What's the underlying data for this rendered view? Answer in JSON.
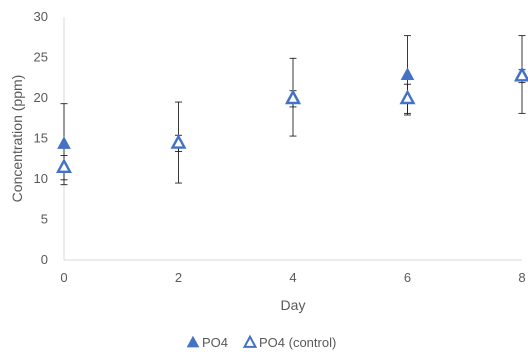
{
  "chart_data": {
    "type": "scatter",
    "title": "",
    "xlabel": "Day",
    "ylabel": "Concentration (ppm)",
    "xlim": [
      0,
      8
    ],
    "ylim": [
      0,
      30
    ],
    "xticks": [
      0,
      2,
      4,
      6,
      8
    ],
    "yticks": [
      0,
      5,
      10,
      15,
      20,
      25,
      30
    ],
    "grid": false,
    "legend_position": "bottom",
    "series": [
      {
        "name": "PO4",
        "marker": "filled-triangle",
        "color": "#4472C4",
        "x": [
          0,
          2,
          4,
          6,
          8
        ],
        "y": [
          14.3,
          14.5,
          20.1,
          22.8,
          22.9
        ],
        "error": [
          5.0,
          5.0,
          4.8,
          4.9,
          4.8
        ]
      },
      {
        "name": "PO4 (control)",
        "marker": "hollow-triangle",
        "color": "#4472C4",
        "x": [
          0,
          2,
          4,
          6,
          8
        ],
        "y": [
          11.4,
          14.4,
          19.9,
          19.9,
          22.7
        ],
        "error": [
          1.5,
          1.0,
          1.0,
          1.8,
          0.8
        ]
      }
    ]
  }
}
